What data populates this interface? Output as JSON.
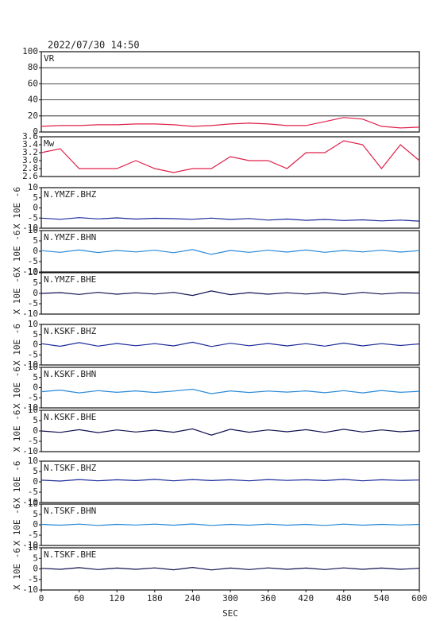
{
  "chart_data": [
    {
      "type": "line",
      "title": "2022/07/30 14:50",
      "xlim": [
        0,
        600
      ],
      "ylim": [
        0,
        100
      ],
      "yticks": [
        0,
        20,
        40,
        60,
        80,
        100
      ],
      "grid": true,
      "x": [
        0,
        30,
        60,
        90,
        120,
        150,
        180,
        210,
        240,
        270,
        300,
        330,
        360,
        390,
        420,
        450,
        480,
        510,
        540,
        570,
        600
      ],
      "series": [
        {
          "name": "VR",
          "color": "#e0204a",
          "values": [
            7,
            8,
            8,
            9,
            9,
            10,
            10,
            9,
            7,
            8,
            10,
            11,
            10,
            8,
            8,
            13,
            18,
            16,
            7,
            5,
            6
          ]
        }
      ]
    },
    {
      "type": "line",
      "xlim": [
        0,
        600
      ],
      "ylim": [
        2.6,
        3.6
      ],
      "yticks": [
        2.6,
        2.8,
        {
          "value": 3,
          "label": "3.0"
        },
        3.2,
        3.4,
        3.6
      ],
      "x": [
        0,
        30,
        60,
        90,
        120,
        150,
        180,
        210,
        240,
        270,
        300,
        330,
        360,
        390,
        420,
        450,
        480,
        510,
        540,
        570,
        600
      ],
      "series": [
        {
          "name": "Mw",
          "color": "#e0204a",
          "values": [
            3.2,
            3.3,
            2.8,
            2.8,
            2.8,
            3.0,
            2.8,
            2.7,
            2.8,
            2.8,
            3.1,
            3.0,
            3.0,
            2.8,
            3.2,
            3.2,
            3.5,
            3.4,
            2.8,
            3.4,
            3.0
          ]
        }
      ]
    },
    {
      "type": "line",
      "ylabel": "X 10E -6",
      "xlim": [
        0,
        600
      ],
      "ylim": [
        -10,
        10
      ],
      "yticks": [
        -10,
        -5,
        0,
        5,
        10
      ],
      "x": [
        0,
        30,
        60,
        90,
        120,
        150,
        180,
        210,
        240,
        270,
        300,
        330,
        360,
        390,
        420,
        450,
        480,
        510,
        540,
        570,
        600
      ],
      "series": [
        {
          "name": "N.YMZF.BHZ",
          "color": "#1a2a9a",
          "values": [
            -5.0,
            -5.6,
            -4.8,
            -5.4,
            -4.9,
            -5.5,
            -5.1,
            -5.3,
            -5.6,
            -5.0,
            -5.7,
            -5.2,
            -6.0,
            -5.5,
            -6.1,
            -5.7,
            -6.2,
            -5.9,
            -6.4,
            -6.0,
            -6.5
          ]
        }
      ]
    },
    {
      "type": "line",
      "ylabel": "X 10E -6",
      "xlim": [
        0,
        600
      ],
      "ylim": [
        -10,
        10
      ],
      "yticks": [
        -10,
        -5,
        0,
        5,
        10
      ],
      "x": [
        0,
        30,
        60,
        90,
        120,
        150,
        180,
        210,
        240,
        270,
        300,
        330,
        360,
        390,
        420,
        450,
        480,
        510,
        540,
        570,
        600
      ],
      "series": [
        {
          "name": "N.YMZF.BHN",
          "color": "#2a8ad8",
          "values": [
            0.3,
            -0.5,
            0.6,
            -0.6,
            0.4,
            -0.3,
            0.5,
            -0.7,
            0.8,
            -1.5,
            0.4,
            -0.5,
            0.5,
            -0.4,
            0.6,
            -0.5,
            0.4,
            -0.3,
            0.5,
            -0.4,
            0.3
          ]
        }
      ]
    },
    {
      "type": "line",
      "ylabel": "X 10E -6",
      "xlim": [
        0,
        600
      ],
      "ylim": [
        -10,
        10
      ],
      "yticks": [
        -10,
        -5,
        0,
        5,
        10
      ],
      "x": [
        0,
        30,
        60,
        90,
        120,
        150,
        180,
        210,
        240,
        270,
        300,
        330,
        360,
        390,
        420,
        450,
        480,
        510,
        540,
        570,
        600
      ],
      "series": [
        {
          "name": "N.YMZF.BHE",
          "color": "#101050",
          "values": [
            0,
            0.4,
            -0.5,
            0.5,
            -0.4,
            0.3,
            -0.3,
            0.5,
            -1.0,
            1.2,
            -0.6,
            0.4,
            -0.4,
            0.3,
            -0.3,
            0.4,
            -0.5,
            0.5,
            -0.3,
            0.3,
            0.1
          ]
        }
      ]
    },
    {
      "type": "line",
      "ylabel": "X 10E -6",
      "xlim": [
        0,
        600
      ],
      "ylim": [
        -10,
        10
      ],
      "yticks": [
        -10,
        -5,
        0,
        5,
        10
      ],
      "x": [
        0,
        30,
        60,
        90,
        120,
        150,
        180,
        210,
        240,
        270,
        300,
        330,
        360,
        390,
        420,
        450,
        480,
        510,
        540,
        570,
        600
      ],
      "series": [
        {
          "name": "N.KSKF.BHZ",
          "color": "#1a2a9a",
          "values": [
            0.5,
            -0.8,
            1.0,
            -0.7,
            0.6,
            -0.5,
            0.5,
            -0.6,
            1.2,
            -0.9,
            0.7,
            -0.5,
            0.6,
            -0.6,
            0.5,
            -0.7,
            0.8,
            -0.6,
            0.5,
            -0.4,
            0.4
          ]
        }
      ]
    },
    {
      "type": "line",
      "ylabel": "X 10E -6",
      "xlim": [
        0,
        600
      ],
      "ylim": [
        -10,
        10
      ],
      "yticks": [
        -10,
        -5,
        0,
        5,
        10
      ],
      "x": [
        0,
        30,
        60,
        90,
        120,
        150,
        180,
        210,
        240,
        270,
        300,
        330,
        360,
        390,
        420,
        450,
        480,
        510,
        540,
        570,
        600
      ],
      "series": [
        {
          "name": "N.KSKF.BHN",
          "color": "#2a8ad8",
          "values": [
            -2.0,
            -1.2,
            -2.6,
            -1.5,
            -2.3,
            -1.6,
            -2.4,
            -1.7,
            -0.8,
            -3.0,
            -1.6,
            -2.4,
            -1.7,
            -2.2,
            -1.6,
            -2.5,
            -1.5,
            -2.6,
            -1.4,
            -2.3,
            -1.8
          ]
        }
      ]
    },
    {
      "type": "line",
      "ylabel": "X 10E -6",
      "xlim": [
        0,
        600
      ],
      "ylim": [
        -10,
        10
      ],
      "yticks": [
        -10,
        -5,
        0,
        5,
        10
      ],
      "x": [
        0,
        30,
        60,
        90,
        120,
        150,
        180,
        210,
        240,
        270,
        300,
        330,
        360,
        390,
        420,
        450,
        480,
        510,
        540,
        570,
        600
      ],
      "series": [
        {
          "name": "N.KSKF.BHE",
          "color": "#101050",
          "values": [
            0,
            -0.7,
            0.6,
            -0.8,
            0.5,
            -0.5,
            0.4,
            -0.6,
            1.0,
            -2.0,
            0.8,
            -0.6,
            0.5,
            -0.4,
            0.6,
            -0.7,
            0.8,
            -0.5,
            0.5,
            -0.4,
            0.2
          ]
        }
      ]
    },
    {
      "type": "line",
      "ylabel": "X 10E -6",
      "xlim": [
        0,
        600
      ],
      "ylim": [
        -10,
        10
      ],
      "yticks": [
        -10,
        -5,
        0,
        5,
        10
      ],
      "x": [
        0,
        30,
        60,
        90,
        120,
        150,
        180,
        210,
        240,
        270,
        300,
        330,
        360,
        390,
        420,
        450,
        480,
        510,
        540,
        570,
        600
      ],
      "series": [
        {
          "name": "N.TSKF.BHZ",
          "color": "#1a2a9a",
          "values": [
            0.8,
            0.4,
            1.1,
            0.5,
            1.0,
            0.6,
            1.2,
            0.5,
            1.1,
            0.6,
            1.0,
            0.5,
            1.1,
            0.7,
            1.0,
            0.6,
            1.2,
            0.5,
            1.0,
            0.7,
            0.9
          ]
        }
      ]
    },
    {
      "type": "line",
      "ylabel": "X 10E -6",
      "xlim": [
        0,
        600
      ],
      "ylim": [
        -10,
        10
      ],
      "yticks": [
        -10,
        -5,
        0,
        5,
        10
      ],
      "x": [
        0,
        30,
        60,
        90,
        120,
        150,
        180,
        210,
        240,
        270,
        300,
        330,
        360,
        390,
        420,
        450,
        480,
        510,
        540,
        570,
        600
      ],
      "series": [
        {
          "name": "N.TSKF.BHN",
          "color": "#2a8ad8",
          "values": [
            0.2,
            -0.2,
            0.3,
            -0.3,
            0.2,
            -0.1,
            0.3,
            -0.2,
            0.4,
            -0.3,
            0.2,
            -0.2,
            0.3,
            -0.2,
            0.2,
            -0.3,
            0.3,
            -0.2,
            0.2,
            -0.1,
            0.2
          ]
        }
      ]
    },
    {
      "type": "line",
      "ylabel": "X 10E -6",
      "xlabel": "SEC",
      "xlim": [
        0,
        600
      ],
      "xticks": [
        0,
        60,
        120,
        180,
        240,
        300,
        360,
        420,
        480,
        540,
        600
      ],
      "ylim": [
        -10,
        10
      ],
      "yticks": [
        -10,
        -5,
        0,
        5,
        10
      ],
      "x": [
        0,
        30,
        60,
        90,
        120,
        150,
        180,
        210,
        240,
        270,
        300,
        330,
        360,
        390,
        420,
        450,
        480,
        510,
        540,
        570,
        600
      ],
      "series": [
        {
          "name": "N.TSKF.BHE",
          "color": "#101050",
          "values": [
            0.3,
            -0.2,
            0.6,
            -0.3,
            0.4,
            -0.2,
            0.5,
            -0.4,
            0.7,
            -0.5,
            0.4,
            -0.3,
            0.5,
            -0.2,
            0.4,
            -0.3,
            0.5,
            -0.2,
            0.4,
            -0.2,
            0.3
          ]
        }
      ]
    }
  ]
}
